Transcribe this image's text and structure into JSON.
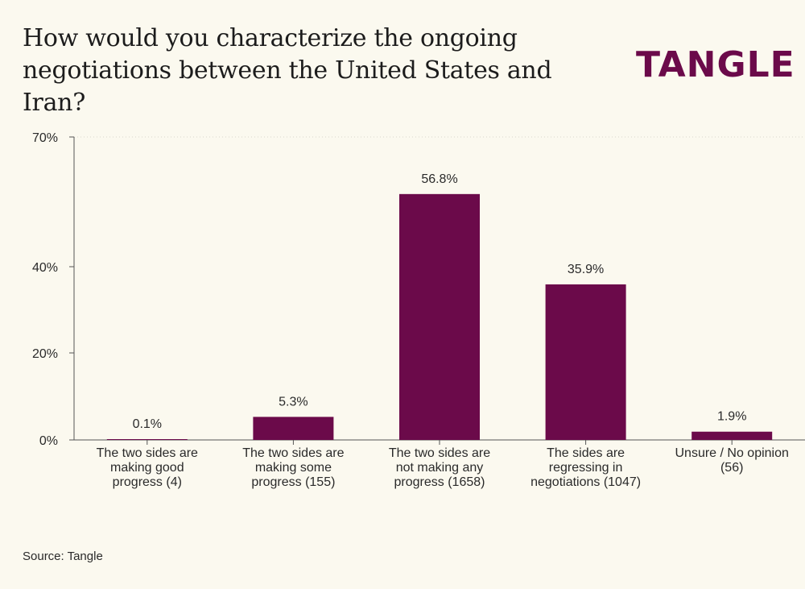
{
  "header": {
    "title": "How would you characterize the ongoing negotiations between the United States and Iran?",
    "logo": "TANGLE"
  },
  "footer": {
    "source": "Source: Tangle"
  },
  "colors": {
    "bar": "#6b0a4a",
    "background": "#fbf9ef",
    "axis": "#555555",
    "grid": "#d8d6cc"
  },
  "chart_data": {
    "type": "bar",
    "title": "How would you characterize the ongoing negotiations between the United States and Iran?",
    "categories": [
      "The two sides are making good progress (4)",
      "The two sides are making some progress (155)",
      "The two sides are not making any progress (1658)",
      "The sides are regressing in negotiations (1047)",
      "Unsure / No opinion (56)"
    ],
    "category_lines": [
      [
        "The two sides are",
        "making good",
        "progress (4)"
      ],
      [
        "The two sides are",
        "making some",
        "progress (155)"
      ],
      [
        "The two sides are",
        "not making any",
        "progress (1658)"
      ],
      [
        "The sides are",
        "regressing in",
        "negotiations (1047)"
      ],
      [
        "Unsure / No opinion",
        "(56)"
      ]
    ],
    "values": [
      0.1,
      5.3,
      56.8,
      35.9,
      1.9
    ],
    "data_labels": [
      "0.1%",
      "5.3%",
      "56.8%",
      "35.9%",
      "1.9%"
    ],
    "y_ticks": [
      0,
      20,
      40,
      70
    ],
    "y_tick_labels": [
      "0%",
      "20%",
      "40%",
      "70%"
    ],
    "ylim": [
      0,
      70
    ],
    "xlabel": "",
    "ylabel": "",
    "grid": "dotted line at top tick only",
    "legend": "none"
  }
}
